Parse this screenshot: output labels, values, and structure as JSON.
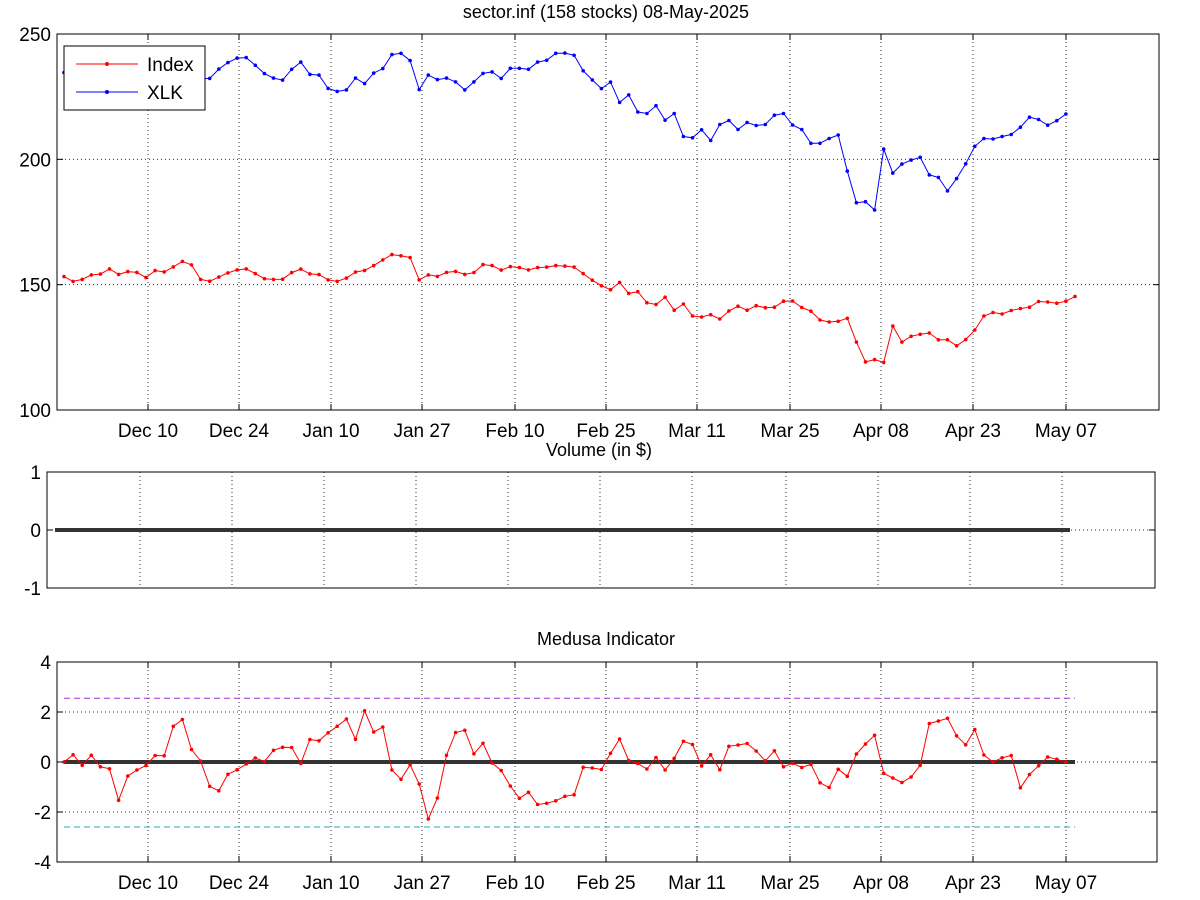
{
  "chart_data": [
    {
      "type": "line",
      "title": "sector.inf (158 stocks)   08-May-2025",
      "xlabel": "",
      "ylabel": "",
      "ylim": [
        100,
        250
      ],
      "yticks": [
        100,
        150,
        200,
        250
      ],
      "xtick_labels": [
        "Dec 10",
        "Dec 24",
        "Jan 10",
        "Jan 27",
        "Feb 10",
        "Feb 25",
        "Mar 11",
        "Mar 25",
        "Apr 08",
        "Apr 23",
        "May 07"
      ],
      "grid": true,
      "legend_position": "top-left",
      "series": [
        {
          "name": "Index",
          "color": "#ff0000",
          "values": [
            153.2,
            151.3,
            152.1,
            153.9,
            154.2,
            156.3,
            154.1,
            155.2,
            154.9,
            152.8,
            155.6,
            155.1,
            157.1,
            159.3,
            157.9,
            152.1,
            151.4,
            153.0,
            154.7,
            155.9,
            156.3,
            154.4,
            152.4,
            152.1,
            152.2,
            154.8,
            156.2,
            154.3,
            154.0,
            151.9,
            151.3,
            152.6,
            155.0,
            155.7,
            157.6,
            159.9,
            162.0,
            161.5,
            160.8,
            151.9,
            153.9,
            153.3,
            154.9,
            155.3,
            154.1,
            154.8,
            158.0,
            157.6,
            155.8,
            157.2,
            156.8,
            155.9,
            156.8,
            157.0,
            157.6,
            157.4,
            157.0,
            154.4,
            151.8,
            149.6,
            148.0,
            150.9,
            146.5,
            147.2,
            142.8,
            142.1,
            145.0,
            139.8,
            142.3,
            137.5,
            137.1,
            138.0,
            136.3,
            139.5,
            141.4,
            139.8,
            141.6,
            140.8,
            141.0,
            143.4,
            143.5,
            140.9,
            139.4,
            135.9,
            135.1,
            135.4,
            136.6,
            127.1,
            119.2,
            120.1,
            119.0,
            133.5,
            127.1,
            129.4,
            130.2,
            130.7,
            128.0,
            128.0,
            125.6,
            128.1,
            131.9,
            137.5,
            138.9,
            138.3,
            139.7,
            140.5,
            141.0,
            143.3,
            143.1,
            142.6,
            143.4,
            145.3
          ]
        },
        {
          "name": "XLK",
          "color": "#0000ff",
          "values": [
            234.6,
            234.8,
            234.8,
            234.3,
            234.3,
            234.4,
            234.5,
            234.0,
            233.9,
            232.9,
            232.7,
            232.2,
            232.4,
            232.3,
            232.2,
            232.1,
            232.3,
            236.0,
            238.6,
            240.4,
            240.6,
            237.5,
            234.2,
            232.4,
            231.6,
            235.9,
            238.8,
            233.9,
            233.6,
            228.3,
            227.1,
            227.7,
            232.4,
            230.2,
            234.4,
            236.2,
            241.8,
            242.3,
            239.4,
            227.8,
            233.6,
            231.8,
            232.4,
            230.9,
            227.7,
            230.9,
            234.3,
            234.9,
            232.3,
            236.3,
            236.3,
            235.9,
            238.8,
            239.5,
            242.3,
            242.4,
            241.5,
            235.3,
            231.7,
            228.2,
            230.8,
            222.7,
            225.7,
            218.9,
            218.3,
            221.4,
            215.6,
            218.3,
            209.1,
            208.6,
            211.8,
            207.5,
            213.9,
            215.5,
            211.9,
            214.7,
            213.5,
            213.9,
            217.6,
            218.3,
            213.7,
            211.9,
            206.4,
            206.4,
            208.3,
            209.7,
            195.3,
            182.7,
            183.1,
            179.8,
            204.1,
            194.5,
            198.1,
            199.7,
            200.8,
            193.8,
            192.8,
            187.4,
            192.3,
            198.2,
            205.2,
            208.3,
            208.1,
            209.1,
            209.9,
            212.8,
            216.8,
            215.9,
            213.6,
            215.4,
            218.1
          ]
        }
      ]
    },
    {
      "type": "line",
      "title": "Volume (in $)",
      "xlabel": "",
      "ylabel": "",
      "ylim": [
        -1,
        1
      ],
      "yticks": [
        -1,
        0,
        1
      ],
      "grid": true,
      "series": [
        {
          "color": "#333333",
          "values": [
            0,
            0
          ]
        }
      ]
    },
    {
      "type": "line",
      "title": "Medusa Indicator",
      "xlabel": "",
      "ylabel": "",
      "ylim": [
        -4,
        4
      ],
      "yticks": [
        -4,
        -2,
        0,
        2,
        4
      ],
      "xtick_labels": [
        "Dec 10",
        "Dec 24",
        "Jan 10",
        "Jan 27",
        "Feb 10",
        "Feb 25",
        "Mar 11",
        "Mar 25",
        "Apr 08",
        "Apr 23",
        "May 07"
      ],
      "grid": true,
      "reference_lines": [
        {
          "value": 2.55,
          "color": "#9b30d9"
        },
        {
          "value": -2.6,
          "color": "#19b0b0"
        },
        {
          "value": 0,
          "color": "#333333"
        }
      ],
      "series": [
        {
          "color": "#ff0000",
          "values": [
            0.0,
            0.29,
            -0.13,
            0.27,
            -0.19,
            -0.27,
            -1.53,
            -0.56,
            -0.32,
            -0.14,
            0.26,
            0.25,
            1.43,
            1.7,
            0.5,
            0.04,
            -0.97,
            -1.15,
            -0.49,
            -0.31,
            -0.08,
            0.16,
            0.02,
            0.47,
            0.59,
            0.58,
            -0.06,
            0.9,
            0.85,
            1.17,
            1.43,
            1.72,
            0.91,
            2.05,
            1.2,
            1.4,
            -0.32,
            -0.69,
            -0.11,
            -0.88,
            -2.28,
            -1.44,
            0.27,
            1.18,
            1.27,
            0.33,
            0.75,
            -0.04,
            -0.34,
            -0.96,
            -1.45,
            -1.21,
            -1.7,
            -1.65,
            -1.55,
            -1.37,
            -1.31,
            -0.21,
            -0.24,
            -0.3,
            0.35,
            0.92,
            0.06,
            -0.06,
            -0.28,
            0.18,
            -0.32,
            0.15,
            0.83,
            0.7,
            -0.16,
            0.29,
            -0.31,
            0.63,
            0.68,
            0.74,
            0.44,
            0.05,
            0.45,
            -0.19,
            -0.05,
            -0.22,
            -0.09,
            -0.83,
            -1.02,
            -0.29,
            -0.57,
            0.32,
            0.72,
            1.07,
            -0.45,
            -0.64,
            -0.82,
            -0.6,
            -0.13,
            1.54,
            1.64,
            1.75,
            1.05,
            0.69,
            1.3,
            0.28,
            0.0,
            0.17,
            0.26,
            -1.03,
            -0.5,
            -0.15,
            0.2,
            0.11,
            0.0
          ]
        }
      ]
    }
  ]
}
